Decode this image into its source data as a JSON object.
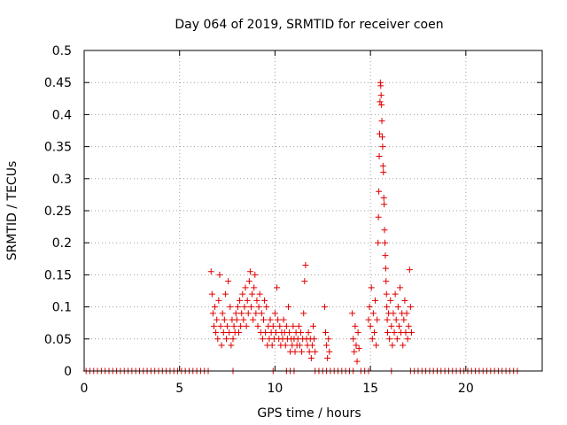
{
  "chart_data": {
    "type": "scatter",
    "title": "Day 064 of 2019, SRMTID for receiver coen",
    "xlabel": "GPS time / hours",
    "ylabel": "SRMTID / TECUs",
    "xlim": [
      0,
      24
    ],
    "ylim": [
      0,
      0.5
    ],
    "xticks": [
      0,
      5,
      10,
      15,
      20
    ],
    "yticks": [
      0,
      0.05,
      0.1,
      0.15,
      0.2,
      0.25,
      0.3,
      0.35,
      0.4,
      0.45,
      0.5
    ],
    "xtick_labels": [
      "0",
      "5",
      "10",
      "15",
      "20"
    ],
    "ytick_labels": [
      "0",
      "0.05",
      "0.1",
      "0.15",
      "0.2",
      "0.25",
      "0.3",
      "0.35",
      "0.4",
      "0.45",
      "0.5"
    ],
    "grid": true,
    "marker": "+",
    "marker_color": "#e00000",
    "series": [
      {
        "name": "SRMTID",
        "points": [
          [
            0.1,
            0
          ],
          [
            0.3,
            0
          ],
          [
            0.5,
            0
          ],
          [
            0.7,
            0
          ],
          [
            0.9,
            0
          ],
          [
            1.1,
            0
          ],
          [
            1.3,
            0
          ],
          [
            1.5,
            0
          ],
          [
            1.7,
            0
          ],
          [
            1.9,
            0
          ],
          [
            2.1,
            0
          ],
          [
            2.3,
            0
          ],
          [
            2.5,
            0
          ],
          [
            2.7,
            0
          ],
          [
            2.9,
            0
          ],
          [
            3.1,
            0
          ],
          [
            3.3,
            0
          ],
          [
            3.5,
            0
          ],
          [
            3.7,
            0
          ],
          [
            3.9,
            0
          ],
          [
            4.1,
            0
          ],
          [
            4.3,
            0
          ],
          [
            4.5,
            0
          ],
          [
            4.7,
            0
          ],
          [
            4.9,
            0
          ],
          [
            5.1,
            0
          ],
          [
            5.3,
            0
          ],
          [
            5.5,
            0
          ],
          [
            5.7,
            0
          ],
          [
            5.9,
            0
          ],
          [
            6.1,
            0
          ],
          [
            6.3,
            0
          ],
          [
            6.5,
            0
          ],
          [
            7.8,
            0
          ],
          [
            9.9,
            0
          ],
          [
            10.6,
            0
          ],
          [
            10.8,
            0
          ],
          [
            11.0,
            0
          ],
          [
            12.1,
            0
          ],
          [
            12.3,
            0
          ],
          [
            12.5,
            0
          ],
          [
            12.7,
            0
          ],
          [
            12.9,
            0
          ],
          [
            13.1,
            0
          ],
          [
            13.3,
            0
          ],
          [
            13.5,
            0
          ],
          [
            13.7,
            0
          ],
          [
            13.9,
            0
          ],
          [
            14.1,
            0
          ],
          [
            14.5,
            0
          ],
          [
            14.7,
            0
          ],
          [
            14.9,
            0
          ],
          [
            16.1,
            0
          ],
          [
            17.1,
            0
          ],
          [
            17.3,
            0
          ],
          [
            17.5,
            0
          ],
          [
            17.7,
            0
          ],
          [
            17.9,
            0
          ],
          [
            18.1,
            0
          ],
          [
            18.3,
            0
          ],
          [
            18.5,
            0
          ],
          [
            18.7,
            0
          ],
          [
            18.9,
            0
          ],
          [
            19.1,
            0
          ],
          [
            19.3,
            0
          ],
          [
            19.5,
            0
          ],
          [
            19.7,
            0
          ],
          [
            19.9,
            0
          ],
          [
            20.1,
            0
          ],
          [
            20.3,
            0
          ],
          [
            20.5,
            0
          ],
          [
            20.7,
            0
          ],
          [
            20.9,
            0
          ],
          [
            21.1,
            0
          ],
          [
            21.3,
            0
          ],
          [
            21.5,
            0
          ],
          [
            21.7,
            0
          ],
          [
            21.9,
            0
          ],
          [
            22.1,
            0
          ],
          [
            22.3,
            0
          ],
          [
            22.5,
            0
          ],
          [
            22.7,
            0
          ],
          [
            6.65,
            0.155
          ],
          [
            6.7,
            0.12
          ],
          [
            6.75,
            0.09
          ],
          [
            6.8,
            0.07
          ],
          [
            6.85,
            0.1
          ],
          [
            6.9,
            0.06
          ],
          [
            6.95,
            0.08
          ],
          [
            7.0,
            0.05
          ],
          [
            7.05,
            0.11
          ],
          [
            7.1,
            0.15
          ],
          [
            7.15,
            0.07
          ],
          [
            7.2,
            0.04
          ],
          [
            7.25,
            0.09
          ],
          [
            7.3,
            0.06
          ],
          [
            7.35,
            0.08
          ],
          [
            7.4,
            0.12
          ],
          [
            7.45,
            0.05
          ],
          [
            7.5,
            0.07
          ],
          [
            7.55,
            0.14
          ],
          [
            7.6,
            0.06
          ],
          [
            7.65,
            0.1
          ],
          [
            7.7,
            0.04
          ],
          [
            7.75,
            0.08
          ],
          [
            7.8,
            0.05
          ],
          [
            7.85,
            0.07
          ],
          [
            7.9,
            0.06
          ],
          [
            7.95,
            0.09
          ],
          [
            8.0,
            0.08
          ],
          [
            8.05,
            0.1
          ],
          [
            8.1,
            0.06
          ],
          [
            8.15,
            0.11
          ],
          [
            8.2,
            0.07
          ],
          [
            8.25,
            0.09
          ],
          [
            8.3,
            0.12
          ],
          [
            8.35,
            0.08
          ],
          [
            8.4,
            0.1
          ],
          [
            8.45,
            0.13
          ],
          [
            8.5,
            0.07
          ],
          [
            8.55,
            0.11
          ],
          [
            8.6,
            0.09
          ],
          [
            8.65,
            0.14
          ],
          [
            8.7,
            0.155
          ],
          [
            8.75,
            0.1
          ],
          [
            8.8,
            0.12
          ],
          [
            8.85,
            0.08
          ],
          [
            8.9,
            0.13
          ],
          [
            8.95,
            0.15
          ],
          [
            9.0,
            0.09
          ],
          [
            9.05,
            0.11
          ],
          [
            9.1,
            0.07
          ],
          [
            9.15,
            0.1
          ],
          [
            9.2,
            0.12
          ],
          [
            9.25,
            0.06
          ],
          [
            9.3,
            0.09
          ],
          [
            9.35,
            0.05
          ],
          [
            9.4,
            0.08
          ],
          [
            9.45,
            0.11
          ],
          [
            9.5,
            0.06
          ],
          [
            9.55,
            0.1
          ],
          [
            9.6,
            0.04
          ],
          [
            9.65,
            0.07
          ],
          [
            9.7,
            0.05
          ],
          [
            9.75,
            0.08
          ],
          [
            9.8,
            0.06
          ],
          [
            9.85,
            0.04
          ],
          [
            9.9,
            0.07
          ],
          [
            9.95,
            0.05
          ],
          [
            10.0,
            0.09
          ],
          [
            10.05,
            0.06
          ],
          [
            10.1,
            0.13
          ],
          [
            10.15,
            0.08
          ],
          [
            10.2,
            0.05
          ],
          [
            10.25,
            0.07
          ],
          [
            10.3,
            0.04
          ],
          [
            10.35,
            0.06
          ],
          [
            10.4,
            0.05
          ],
          [
            10.45,
            0.08
          ],
          [
            10.5,
            0.06
          ],
          [
            10.55,
            0.04
          ],
          [
            10.6,
            0.07
          ],
          [
            10.65,
            0.05
          ],
          [
            10.7,
            0.1
          ],
          [
            10.75,
            0.06
          ],
          [
            10.8,
            0.03
          ],
          [
            10.85,
            0.05
          ],
          [
            10.9,
            0.04
          ],
          [
            10.95,
            0.07
          ],
          [
            11.0,
            0.05
          ],
          [
            11.05,
            0.03
          ],
          [
            11.1,
            0.06
          ],
          [
            11.15,
            0.04
          ],
          [
            11.2,
            0.05
          ],
          [
            11.25,
            0.07
          ],
          [
            11.3,
            0.04
          ],
          [
            11.35,
            0.06
          ],
          [
            11.4,
            0.03
          ],
          [
            11.45,
            0.05
          ],
          [
            11.5,
            0.09
          ],
          [
            11.55,
            0.14
          ],
          [
            11.6,
            0.165
          ],
          [
            11.65,
            0.05
          ],
          [
            11.7,
            0.04
          ],
          [
            11.75,
            0.06
          ],
          [
            11.8,
            0.03
          ],
          [
            11.85,
            0.05
          ],
          [
            11.9,
            0.02
          ],
          [
            11.95,
            0.04
          ],
          [
            12.0,
            0.07
          ],
          [
            12.05,
            0.05
          ],
          [
            12.1,
            0.03
          ],
          [
            12.6,
            0.1
          ],
          [
            12.65,
            0.06
          ],
          [
            12.7,
            0.04
          ],
          [
            12.75,
            0.02
          ],
          [
            12.8,
            0.05
          ],
          [
            12.85,
            0.03
          ],
          [
            14.05,
            0.09
          ],
          [
            14.1,
            0.05
          ],
          [
            14.15,
            0.03
          ],
          [
            14.2,
            0.07
          ],
          [
            14.25,
            0.04
          ],
          [
            14.3,
            0.015
          ],
          [
            14.35,
            0.06
          ],
          [
            14.4,
            0.035
          ],
          [
            14.9,
            0.08
          ],
          [
            14.95,
            0.1
          ],
          [
            15.0,
            0.07
          ],
          [
            15.05,
            0.13
          ],
          [
            15.1,
            0.05
          ],
          [
            15.15,
            0.09
          ],
          [
            15.2,
            0.06
          ],
          [
            15.25,
            0.11
          ],
          [
            15.3,
            0.04
          ],
          [
            15.35,
            0.08
          ],
          [
            15.4,
            0.2
          ],
          [
            15.42,
            0.24
          ],
          [
            15.44,
            0.28
          ],
          [
            15.46,
            0.335
          ],
          [
            15.48,
            0.37
          ],
          [
            15.5,
            0.42
          ],
          [
            15.52,
            0.45
          ],
          [
            15.54,
            0.445
          ],
          [
            15.56,
            0.43
          ],
          [
            15.58,
            0.415
          ],
          [
            15.6,
            0.39
          ],
          [
            15.62,
            0.365
          ],
          [
            15.64,
            0.35
          ],
          [
            15.66,
            0.32
          ],
          [
            15.68,
            0.31
          ],
          [
            15.7,
            0.27
          ],
          [
            15.72,
            0.26
          ],
          [
            15.74,
            0.22
          ],
          [
            15.76,
            0.2
          ],
          [
            15.78,
            0.18
          ],
          [
            15.8,
            0.16
          ],
          [
            15.82,
            0.14
          ],
          [
            15.84,
            0.12
          ],
          [
            15.86,
            0.1
          ],
          [
            15.88,
            0.08
          ],
          [
            15.9,
            0.06
          ],
          [
            15.95,
            0.09
          ],
          [
            16.0,
            0.05
          ],
          [
            16.05,
            0.11
          ],
          [
            16.1,
            0.07
          ],
          [
            16.15,
            0.04
          ],
          [
            16.2,
            0.09
          ],
          [
            16.25,
            0.06
          ],
          [
            16.3,
            0.12
          ],
          [
            16.35,
            0.08
          ],
          [
            16.4,
            0.05
          ],
          [
            16.45,
            0.1
          ],
          [
            16.5,
            0.07
          ],
          [
            16.55,
            0.13
          ],
          [
            16.6,
            0.06
          ],
          [
            16.65,
            0.09
          ],
          [
            16.7,
            0.04
          ],
          [
            16.75,
            0.08
          ],
          [
            16.8,
            0.11
          ],
          [
            16.85,
            0.06
          ],
          [
            16.9,
            0.09
          ],
          [
            16.95,
            0.05
          ],
          [
            17.0,
            0.07
          ],
          [
            17.05,
            0.158
          ],
          [
            17.1,
            0.1
          ],
          [
            17.15,
            0.06
          ]
        ]
      }
    ]
  }
}
